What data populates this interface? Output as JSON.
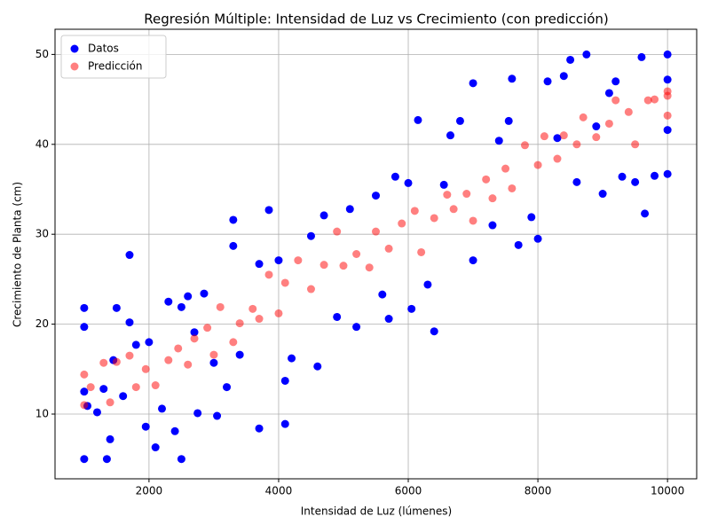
{
  "chart_data": {
    "type": "scatter",
    "title": "Regresión Múltiple: Intensidad de Luz vs Crecimiento (con predicción)",
    "x_label": "Intensidad de Luz (lúmenes)",
    "y_label": "Crecimiento de Planta (cm)",
    "xlim": [
      550,
      10450
    ],
    "ylim": [
      2.8,
      52.8
    ],
    "xticks": [
      2000,
      4000,
      6000,
      8000,
      10000
    ],
    "yticks": [
      10,
      20,
      30,
      40,
      50
    ],
    "grid": true,
    "legend": "upper-left",
    "series": [
      {
        "name": "Datos",
        "color": "#0000ff",
        "opacity": 1,
        "x": [
          1000,
          1000,
          1000,
          1000,
          1050,
          1200,
          1300,
          1350,
          1400,
          1450,
          1500,
          1600,
          1700,
          1700,
          1800,
          1950,
          2000,
          2100,
          2200,
          2300,
          2400,
          2500,
          2500,
          2600,
          2700,
          2750,
          2850,
          3000,
          3050,
          3200,
          3300,
          3300,
          3400,
          3700,
          3700,
          3850,
          4000,
          4100,
          4100,
          4200,
          4500,
          4600,
          4700,
          4900,
          5100,
          5200,
          5500,
          5600,
          5700,
          5800,
          6000,
          6050,
          6150,
          6300,
          6400,
          6550,
          6650,
          6800,
          7000,
          7000,
          7300,
          7400,
          7550,
          7600,
          7700,
          7900,
          8000,
          8150,
          8300,
          8400,
          8500,
          8600,
          8750,
          8900,
          9000,
          9100,
          9200,
          9300,
          9500,
          9600,
          9650,
          9800,
          10000,
          10000,
          10000,
          10000
        ],
        "values": [
          5,
          21.8,
          19.7,
          12.5,
          10.9,
          10.2,
          12.8,
          5,
          7.2,
          16,
          21.8,
          12,
          27.7,
          20.2,
          17.7,
          8.6,
          18,
          6.3,
          10.6,
          22.5,
          8.1,
          5,
          21.9,
          23.1,
          19.1,
          10.1,
          23.4,
          15.7,
          9.8,
          13,
          28.7,
          31.6,
          16.6,
          8.4,
          26.7,
          32.7,
          27.1,
          8.9,
          13.7,
          16.2,
          29.8,
          15.3,
          32.1,
          20.8,
          32.8,
          19.7,
          34.3,
          23.3,
          20.6,
          36.4,
          35.7,
          21.7,
          42.7,
          24.4,
          19.2,
          35.5,
          41,
          42.6,
          46.8,
          27.1,
          31,
          40.4,
          42.6,
          47.3,
          28.8,
          31.9,
          29.5,
          47,
          40.7,
          47.6,
          49.4,
          35.8,
          50,
          42,
          34.5,
          45.7,
          47,
          36.4,
          35.8,
          49.7,
          32.3,
          36.5,
          50,
          36.7,
          41.6,
          47.2
        ]
      },
      {
        "name": "Predicción",
        "color": "#ff0000",
        "opacity": 0.5,
        "x": [
          1000,
          1000,
          1100,
          1300,
          1400,
          1500,
          1700,
          1800,
          1950,
          2100,
          2300,
          2450,
          2600,
          2700,
          2900,
          3000,
          3100,
          3300,
          3400,
          3600,
          3700,
          3850,
          4000,
          4100,
          4300,
          4500,
          4700,
          4900,
          5000,
          5200,
          5400,
          5500,
          5700,
          5900,
          6100,
          6200,
          6400,
          6600,
          6700,
          6900,
          7000,
          7200,
          7300,
          7500,
          7600,
          7800,
          8000,
          8100,
          8300,
          8400,
          8600,
          8700,
          8900,
          9100,
          9200,
          9400,
          9500,
          9700,
          9800,
          10000,
          10000,
          10000
        ],
        "values": [
          11,
          14.4,
          13,
          15.7,
          11.3,
          15.8,
          16.5,
          13,
          15,
          13.2,
          16,
          17.3,
          15.5,
          18.4,
          19.6,
          16.6,
          21.9,
          18,
          20.1,
          21.7,
          20.6,
          25.5,
          21.2,
          24.6,
          27.1,
          23.9,
          26.6,
          30.3,
          26.5,
          27.8,
          26.3,
          30.3,
          28.4,
          31.2,
          32.6,
          28,
          31.8,
          34.4,
          32.8,
          34.5,
          31.5,
          36.1,
          34,
          37.3,
          35.1,
          39.9,
          37.7,
          40.9,
          38.4,
          41,
          40,
          43,
          40.8,
          42.3,
          44.9,
          43.6,
          40,
          44.9,
          45,
          45.9,
          43.2,
          45.4
        ]
      }
    ]
  }
}
